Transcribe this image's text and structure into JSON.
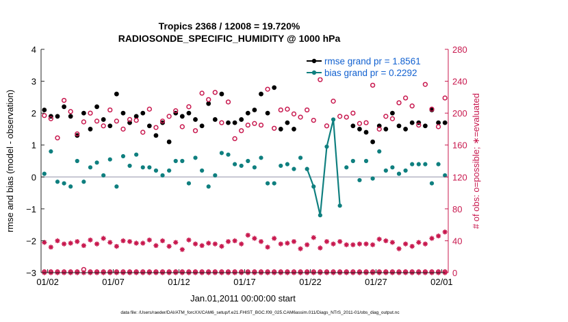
{
  "chart_data": {
    "type": "line",
    "title": "Tropics 2368 / 12008 = 19.720%",
    "subtitle": "RADIOSONDE_SPECIFIC_HUMIDITY @ 1000 hPa",
    "xlabel": "Jan.01,2011 00:00:00 start",
    "ylabel": "rmse and bias (model - observation)",
    "ylabel_right": "# of obs: o=possible; ∗=evaluated",
    "xlim": [
      0.5,
      31.5
    ],
    "ylim": [
      -3,
      4
    ],
    "ylim_right": [
      0,
      280
    ],
    "xticks": [
      1,
      6,
      11,
      16,
      21,
      26,
      31
    ],
    "xticklabels": [
      "01/02",
      "01/07",
      "01/12",
      "01/17",
      "01/22",
      "01/27",
      "02/01"
    ],
    "yticks": [
      -3,
      -2,
      -1,
      0,
      1,
      2,
      3,
      4
    ],
    "yticklabels": [
      "−3",
      "−2",
      "−1",
      "0",
      "1",
      "2",
      "3",
      "4"
    ],
    "yticks_right": [
      0,
      40,
      80,
      120,
      160,
      200,
      240,
      280
    ],
    "yticklabels_right": [
      "0",
      "40",
      "80",
      "120",
      "160",
      "200",
      "240",
      "280"
    ],
    "footer": "data file: /Users/raeder/DAI/ATM_forcXX/CAM6_setup/f.e21.FHIST_BGC.f09_025.CAM6assim.011/Diags_NTrS_2011-01/obs_diag_output.nc",
    "legend": {
      "position": "top-right",
      "entries": [
        "rmse grand pr = 1.8561",
        "bias grand pr = 0.2292"
      ]
    },
    "x": [
      0.75,
      1.25,
      1.75,
      2.25,
      2.75,
      3.25,
      3.75,
      4.25,
      4.75,
      5.25,
      5.75,
      6.25,
      6.75,
      7.25,
      7.75,
      8.25,
      8.75,
      9.25,
      9.75,
      10.25,
      10.75,
      11.25,
      11.75,
      12.25,
      12.75,
      13.25,
      13.75,
      14.25,
      14.75,
      15.25,
      15.75,
      16.25,
      16.75,
      17.25,
      17.75,
      18.25,
      18.75,
      19.25,
      19.75,
      20.25,
      20.75,
      21.25,
      21.75,
      22.25,
      22.75,
      23.25,
      23.75,
      24.25,
      24.75,
      25.25,
      25.75,
      26.25,
      26.75,
      27.25,
      27.75,
      28.25,
      28.75,
      29.25,
      29.75,
      30.25,
      30.75,
      31.25
    ],
    "series": [
      {
        "name": "rmse",
        "color": "#000000",
        "marker": "dot",
        "values": [
          2.1,
          1.9,
          1.9,
          2.2,
          1.9,
          1.3,
          2.0,
          1.5,
          2.2,
          1.8,
          1.6,
          2.6,
          2.0,
          1.7,
          1.9,
          2.0,
          1.6,
          1.3,
          1.7,
          1.1,
          2.0,
          1.9,
          2.0,
          1.8,
          1.6,
          2.3,
          1.8,
          2.6,
          1.7,
          1.7,
          1.8,
          2.0,
          2.1,
          2.6,
          2.0,
          2.8,
          1.5,
          1.7,
          1.5,
          null,
          null,
          null,
          null,
          null,
          null,
          null,
          null,
          1.6,
          1.5,
          1.4,
          1.1,
          1.6,
          1.5,
          2.0,
          1.6,
          1.5,
          1.7,
          1.7,
          1.6,
          2.1,
          1.7,
          1.7
        ]
      },
      {
        "name": "bias",
        "color": "#0f7f7f",
        "marker": "dot",
        "values": [
          0.1,
          0.8,
          -0.15,
          -0.2,
          -0.3,
          0.5,
          -0.15,
          0.3,
          0.45,
          0.05,
          0.55,
          -0.3,
          0.65,
          0.35,
          0.7,
          0.3,
          0.3,
          0.2,
          0.05,
          0.2,
          0.5,
          0.5,
          -0.2,
          0.6,
          0.2,
          -0.3,
          0.05,
          0.75,
          0.7,
          0.4,
          0.35,
          0.5,
          0.3,
          0.6,
          -0.2,
          -0.2,
          0.35,
          0.4,
          0.25,
          0.6,
          0.25,
          -0.3,
          -1.2,
          0.95,
          1.8,
          -0.9,
          0.3,
          0.5,
          -0.1,
          0.5,
          -0.05,
          0.8,
          0.2,
          0.3,
          0.1,
          0.2,
          0.4,
          0.4,
          0.4,
          -0.2,
          0.4,
          0.05
        ]
      },
      {
        "name": "possible",
        "color": "#c8184e",
        "marker": "circle",
        "values": [
          197,
          193,
          169,
          216,
          202,
          174,
          189,
          200,
          190,
          184,
          204,
          190,
          180,
          192,
          191,
          176,
          205,
          182,
          190,
          196,
          203,
          183,
          208,
          178,
          225,
          217,
          226,
          188,
          214,
          168,
          178,
          185,
          187,
          185,
          230,
          181,
          204,
          205,
          199,
          195,
          204,
          191,
          242,
          184,
          215,
          196,
          195,
          200,
          187,
          188,
          235,
          180,
          196,
          193,
          213,
          219,
          209,
          185,
          236,
          205,
          183,
          219
        ]
      },
      {
        "name": "evaluated",
        "color": "#c8184e",
        "marker": "star",
        "values": [
          38,
          32,
          40,
          36,
          37,
          39,
          34,
          41,
          36,
          43,
          38,
          33,
          40,
          39,
          37,
          37,
          41,
          34,
          40,
          33,
          38,
          29,
          41,
          36,
          34,
          37,
          36,
          33,
          39,
          40,
          36,
          47,
          43,
          39,
          32,
          43,
          36,
          37,
          39,
          30,
          35,
          44,
          31,
          39,
          36,
          39,
          35,
          35,
          36,
          36,
          35,
          42,
          40,
          38,
          30,
          36,
          33,
          38,
          36,
          43,
          46,
          51
        ]
      },
      {
        "name": "possible-baseline",
        "color": "#c8184e",
        "marker": "circle",
        "values": [
          1,
          1,
          1,
          1,
          1,
          1,
          4,
          1,
          1,
          1,
          1,
          1,
          1,
          1,
          1,
          1,
          1,
          1,
          1,
          1,
          1,
          1,
          1,
          1,
          1,
          1,
          1,
          1,
          1,
          1,
          1,
          1,
          1,
          1,
          1,
          1,
          1,
          1,
          1,
          1,
          1,
          1,
          1,
          1,
          1,
          1,
          1,
          1,
          1,
          1,
          1,
          1,
          1,
          1,
          1,
          1,
          1,
          1,
          1,
          1,
          1,
          1
        ]
      },
      {
        "name": "evaluated-baseline",
        "color": "#c8184e",
        "marker": "star",
        "values": [
          0,
          0,
          0,
          0,
          0,
          0,
          0,
          0,
          0,
          0,
          0,
          0,
          0,
          0,
          0,
          0,
          0,
          0,
          0,
          0,
          0,
          0,
          0,
          0,
          0,
          0,
          0,
          0,
          0,
          0,
          0,
          0,
          0,
          0,
          0,
          0,
          0,
          0,
          0,
          0,
          0,
          0,
          0,
          0,
          0,
          0,
          0,
          0,
          0,
          0,
          0,
          0,
          0,
          0,
          0,
          0,
          0,
          0,
          0,
          0,
          0,
          0
        ]
      }
    ],
    "bias_line_segments": [
      [
        40,
        45
      ]
    ]
  }
}
